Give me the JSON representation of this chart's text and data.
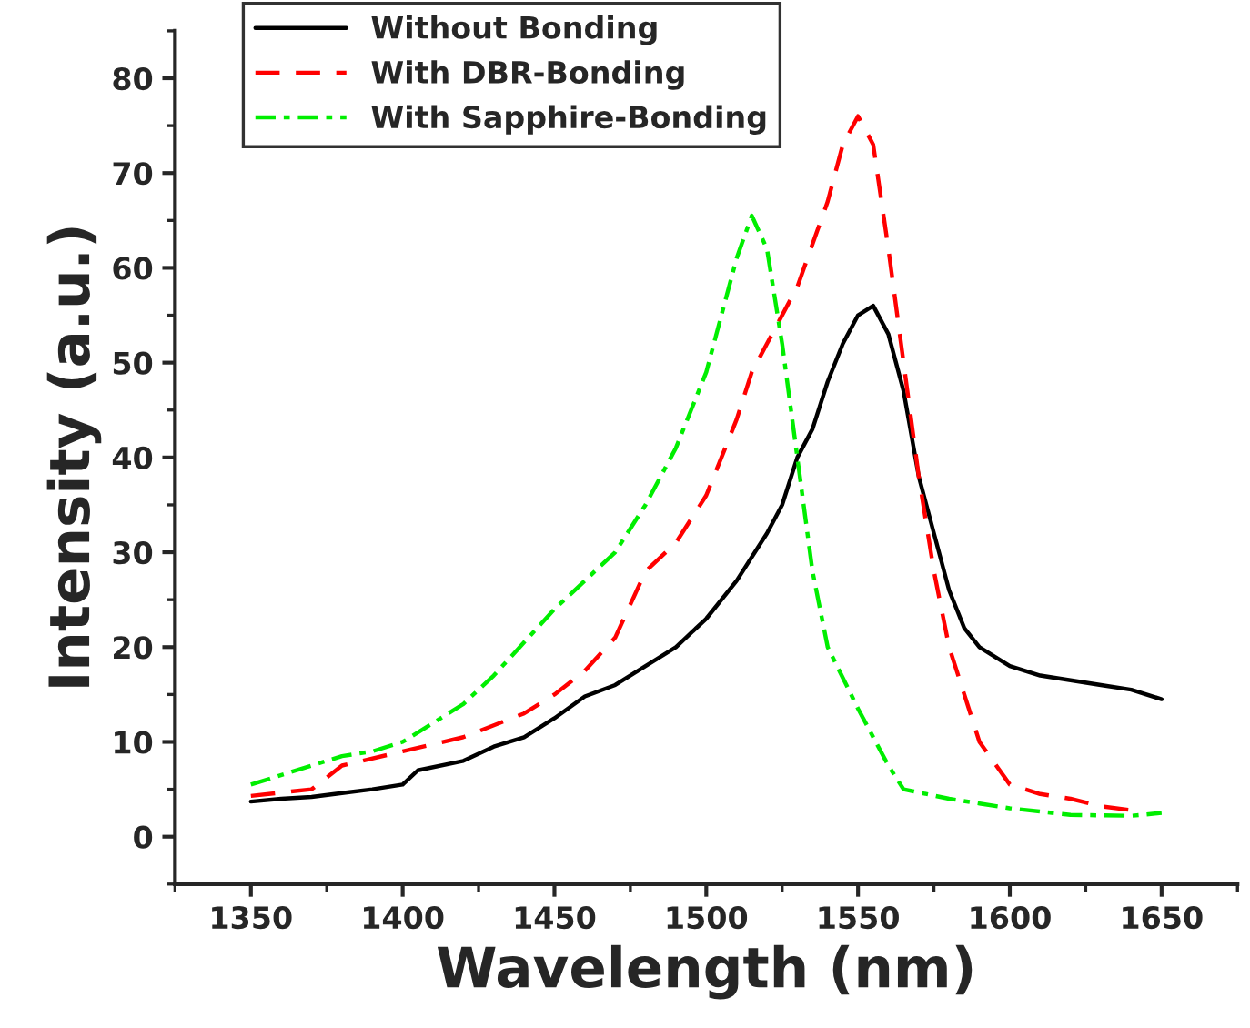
{
  "chart_data": {
    "type": "line",
    "xlabel": "Wavelength (nm)",
    "ylabel": "Intensity (a.u.)",
    "xlim": [
      1325,
      1675
    ],
    "xticks": [
      1350,
      1400,
      1450,
      1500,
      1550,
      1600,
      1650
    ],
    "ylim": [
      -5,
      85
    ],
    "yticks": [
      0,
      10,
      20,
      30,
      40,
      50,
      60,
      70,
      80
    ],
    "grid": false,
    "legend": "top left",
    "marker": "none",
    "series": [
      {
        "name": "Without Bonding",
        "color": "#000000",
        "line_style": "solid",
        "x": [
          1350,
          1360,
          1370,
          1380,
          1390,
          1400,
          1405,
          1420,
          1430,
          1440,
          1450,
          1460,
          1470,
          1480,
          1490,
          1500,
          1510,
          1520,
          1525,
          1530,
          1535,
          1540,
          1545,
          1550,
          1555,
          1560,
          1565,
          1570,
          1575,
          1580,
          1585,
          1590,
          1600,
          1610,
          1620,
          1630,
          1640,
          1650
        ],
        "values": [
          3.7,
          4,
          4.2,
          4.6,
          5,
          5.5,
          7,
          8,
          9.5,
          10.5,
          12.5,
          14.8,
          16,
          18,
          20,
          23,
          27,
          32,
          35,
          40,
          43,
          48,
          52,
          55,
          56,
          53,
          47,
          38,
          32,
          26,
          22,
          20,
          18,
          17,
          16.5,
          16,
          15.5,
          14.5
        ]
      },
      {
        "name": "With DBR-Bonding",
        "color": "#ff0000",
        "line_style": "dashed",
        "x": [
          1350,
          1370,
          1380,
          1400,
          1420,
          1440,
          1450,
          1460,
          1470,
          1480,
          1490,
          1500,
          1510,
          1515,
          1520,
          1530,
          1540,
          1545,
          1550,
          1555,
          1560,
          1565,
          1570,
          1575,
          1580,
          1590,
          1600,
          1610,
          1620,
          1630,
          1640
        ],
        "values": [
          4.3,
          5,
          7.5,
          9,
          10.5,
          13,
          15,
          17.5,
          21,
          28,
          31,
          36,
          44,
          49,
          52,
          58,
          67,
          73,
          76,
          73,
          62,
          50,
          38,
          28,
          20,
          10,
          5.5,
          4.5,
          4,
          3.2,
          2.8
        ]
      },
      {
        "name": "With Sapphire-Bonding",
        "color": "#00ee00",
        "line_style": "dashdot",
        "x": [
          1350,
          1370,
          1380,
          1390,
          1400,
          1410,
          1420,
          1430,
          1440,
          1450,
          1460,
          1470,
          1480,
          1490,
          1500,
          1505,
          1510,
          1515,
          1520,
          1525,
          1530,
          1535,
          1540,
          1550,
          1560,
          1565,
          1580,
          1590,
          1600,
          1620,
          1640,
          1650
        ],
        "values": [
          5.5,
          7.5,
          8.5,
          9,
          10,
          12,
          14,
          17,
          20.5,
          24,
          27,
          30,
          35,
          41,
          49,
          55,
          61,
          65.5,
          62,
          52,
          40,
          28,
          20,
          13.5,
          7.5,
          5,
          4,
          3.5,
          3,
          2.3,
          2.2,
          2.5
        ]
      }
    ]
  }
}
